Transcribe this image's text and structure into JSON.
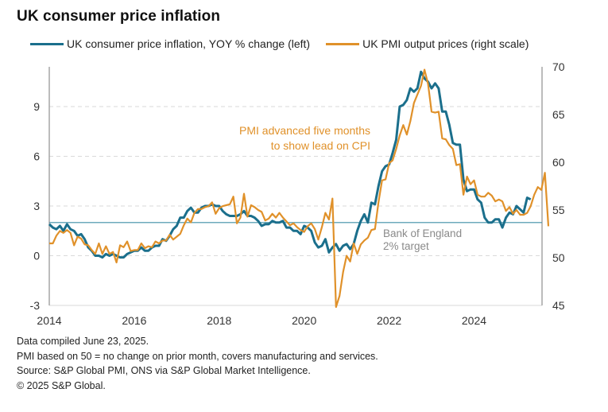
{
  "chart_data": {
    "type": "line",
    "title": "UK consumer price inflation",
    "xlabel": "",
    "x_start": "2014-01",
    "x_tick_labels": [
      "2014",
      "2016",
      "2018",
      "2020",
      "2022",
      "2024"
    ],
    "xlim": [
      2014.0,
      2025.6
    ],
    "legend_placement": "top",
    "grid": true,
    "y_left": {
      "label": "",
      "ylim": [
        -3,
        11.4
      ],
      "ticks": [
        -3,
        0,
        3,
        6,
        9
      ]
    },
    "y_right": {
      "label": "",
      "ylim": [
        45,
        70
      ],
      "ticks": [
        45,
        50,
        55,
        60,
        65,
        70
      ]
    },
    "reference_line": {
      "axis": "left",
      "value": 2,
      "label_lines": [
        "Bank of England",
        "2% target"
      ]
    },
    "annotation": {
      "lines": [
        "PMI advanced five months",
        "to show lead on CPI"
      ]
    },
    "series": [
      {
        "name": "UK consumer price inflation, YOY % change (left)",
        "axis": "left",
        "color": "#1B6F8C",
        "start": "2014-01",
        "values": [
          1.9,
          1.7,
          1.6,
          1.8,
          1.5,
          1.9,
          1.6,
          1.5,
          1.2,
          1.3,
          1.0,
          0.5,
          0.3,
          0.0,
          0.0,
          -0.1,
          0.1,
          0.0,
          0.1,
          0.0,
          -0.1,
          -0.1,
          0.1,
          0.2,
          0.3,
          0.3,
          0.5,
          0.3,
          0.3,
          0.5,
          0.6,
          0.6,
          1.0,
          0.9,
          1.2,
          1.6,
          1.8,
          2.3,
          2.3,
          2.7,
          2.9,
          2.6,
          2.6,
          2.9,
          3.0,
          3.0,
          3.1,
          3.0,
          3.0,
          2.7,
          2.5,
          2.4,
          2.4,
          2.4,
          2.5,
          2.7,
          2.4,
          2.4,
          2.3,
          2.1,
          1.8,
          1.9,
          1.9,
          2.1,
          2.0,
          2.0,
          2.1,
          1.7,
          1.7,
          1.5,
          1.5,
          1.3,
          1.8,
          1.7,
          1.5,
          0.8,
          0.5,
          0.6,
          1.0,
          0.2,
          0.5,
          0.7,
          0.3,
          0.6,
          0.7,
          0.4,
          0.7,
          1.5,
          2.1,
          2.5,
          2.0,
          3.2,
          3.1,
          4.2,
          5.1,
          5.4,
          5.5,
          6.2,
          7.0,
          9.0,
          9.1,
          9.4,
          10.1,
          9.9,
          10.1,
          11.1,
          10.7,
          10.5,
          10.1,
          10.4,
          10.1,
          8.7,
          8.7,
          7.9,
          6.8,
          6.7,
          6.7,
          4.6,
          3.9,
          4.0,
          4.0,
          3.4,
          3.2,
          2.3,
          2.0,
          2.0,
          2.2,
          2.2,
          1.7,
          2.3,
          2.6,
          2.5,
          3.0,
          2.8,
          2.6,
          3.5,
          3.4
        ]
      },
      {
        "name": "UK PMI output prices (right scale)",
        "axis": "right",
        "color": "#E0912A",
        "start": "2014-01",
        "values": [
          51.5,
          51.5,
          52.3,
          52.8,
          52.6,
          52.9,
          52.6,
          51.3,
          52.2,
          52.0,
          51.4,
          51.3,
          50.8,
          50.4,
          51.5,
          50.4,
          51.2,
          50.4,
          50.6,
          49.5,
          51.3,
          51.1,
          51.7,
          50.7,
          50.8,
          50.8,
          51.5,
          51.0,
          51.2,
          51.1,
          51.7,
          51.5,
          51.8,
          51.8,
          52.4,
          51.9,
          52.2,
          52.5,
          53.4,
          54.1,
          53.7,
          54.7,
          55.1,
          55.1,
          55.3,
          55.4,
          55.8,
          54.6,
          55.2,
          55.4,
          55.5,
          55.6,
          56.4,
          53.6,
          54.2,
          56.7,
          54.3,
          55.5,
          55.3,
          55.0,
          54.8,
          53.9,
          54.1,
          54.6,
          54.2,
          54.7,
          54.2,
          53.8,
          53.4,
          53.6,
          53.2,
          52.9,
          52.7,
          53.3,
          53.6,
          53.0,
          51.9,
          53.2,
          54.7,
          54.0,
          56.2,
          44.7,
          46.0,
          48.5,
          50.2,
          49.6,
          51.5,
          50.4,
          51.4,
          51.8,
          52.1,
          52.9,
          53.0,
          55.8,
          58.1,
          58.2,
          59.9,
          60.2,
          61.4,
          62.8,
          63.9,
          62.9,
          64.3,
          66.2,
          67.1,
          68.0,
          69.7,
          68.2,
          65.3,
          65.2,
          65.3,
          62.5,
          62.4,
          61.8,
          61.4,
          59.7,
          59.8,
          56.6,
          58.5,
          57.7,
          58.1,
          56.6,
          56.4,
          56.4,
          56.8,
          56.5,
          55.9,
          56.1,
          55.9,
          54.9,
          55.3,
          54.6,
          55.0,
          54.5,
          54.5,
          54.7,
          55.4,
          56.6,
          57.4,
          57.1,
          58.9,
          53.3
        ]
      }
    ]
  },
  "footer": {
    "lines": [
      "Data compiled June 23, 2025.",
      "PMI based on 50 = no change on prior month, covers manufacturing and services.",
      "Source: S&P Global PMI, ONS via S&P Global Market Intelligence.",
      "© 2025 S&P Global."
    ]
  },
  "colors": {
    "cpi": "#1B6F8C",
    "pmi": "#E0912A",
    "target_line": "#3E8FA6",
    "grid": "#d9d9d9",
    "axis": "#a6a6a6"
  }
}
